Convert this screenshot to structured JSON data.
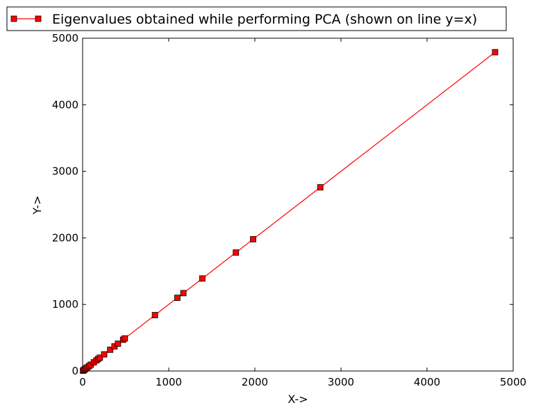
{
  "chart_data": {
    "type": "line",
    "title": "",
    "xlabel": "X->",
    "ylabel": "Y->",
    "xlim": [
      0,
      5000
    ],
    "ylim": [
      0,
      5000
    ],
    "xticks": [
      "0",
      "1000",
      "2000",
      "3000",
      "4000",
      "5000"
    ],
    "yticks": [
      "0",
      "1000",
      "2000",
      "3000",
      "4000",
      "5000"
    ],
    "grid": false,
    "legend_position": "top",
    "series": [
      {
        "name": "Eigenvalues obtained while performing PCA (shown on line y=x)",
        "color": "#ff0000",
        "marker": "square",
        "x": [
          5,
          15,
          25,
          40,
          55,
          75,
          95,
          130,
          160,
          180,
          200,
          250,
          320,
          370,
          410,
          470,
          490,
          840,
          1100,
          1170,
          1390,
          1780,
          1980,
          2760,
          4790
        ],
        "y": [
          5,
          15,
          25,
          40,
          55,
          75,
          95,
          130,
          160,
          180,
          200,
          250,
          320,
          370,
          410,
          470,
          490,
          840,
          1100,
          1170,
          1390,
          1780,
          1980,
          2760,
          4790
        ]
      }
    ]
  }
}
